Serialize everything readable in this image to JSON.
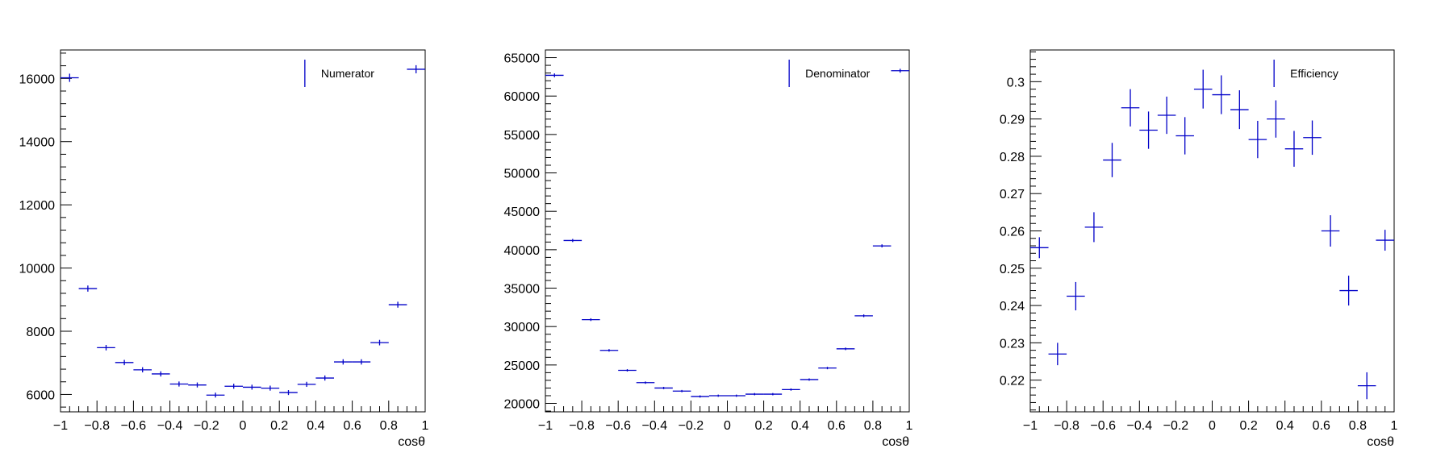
{
  "colors": {
    "marker": "#0000c8",
    "axis": "#000000",
    "background": "#ffffff"
  },
  "chart_data": [
    {
      "type": "scatter",
      "style": "histogram-error-bars",
      "xlabel": "cosθ",
      "ylabel": "",
      "xlim": [
        -1,
        1
      ],
      "ylim": [
        5450,
        16900
      ],
      "grid": false,
      "legend": {
        "position": "top-right",
        "entries": [
          "Numerator"
        ]
      },
      "x_ticks": [
        -1,
        -0.8,
        -0.6,
        -0.4,
        -0.2,
        0,
        0.2,
        0.4,
        0.6,
        0.8,
        1
      ],
      "x_tick_labels": [
        "−1",
        "−0.8",
        "−0.6",
        "−0.4",
        "−0.2",
        "0",
        "0.2",
        "0.4",
        "0.6",
        "0.8",
        "1"
      ],
      "y_ticks": [
        6000,
        8000,
        10000,
        12000,
        14000,
        16000
      ],
      "y_tick_labels": [
        "6000",
        "8000",
        "10000",
        "12000",
        "14000",
        "16000"
      ],
      "bin_half_width": 0.05,
      "series": [
        {
          "name": "Numerator",
          "x": [
            -0.95,
            -0.85,
            -0.75,
            -0.65,
            -0.55,
            -0.45,
            -0.35,
            -0.25,
            -0.15,
            -0.05,
            0.05,
            0.15,
            0.25,
            0.35,
            0.45,
            0.55,
            0.65,
            0.75,
            0.85,
            0.95
          ],
          "y": [
            16020,
            9350,
            7480,
            7010,
            6780,
            6650,
            6330,
            6300,
            5980,
            6260,
            6230,
            6200,
            6060,
            6320,
            6520,
            7030,
            7030,
            7640,
            8840,
            16290
          ],
          "err": [
            130,
            97,
            86,
            84,
            82,
            82,
            80,
            79,
            77,
            79,
            79,
            79,
            78,
            80,
            81,
            84,
            84,
            87,
            94,
            128
          ]
        }
      ]
    },
    {
      "type": "scatter",
      "style": "histogram-error-bars",
      "xlabel": "cosθ",
      "ylabel": "",
      "xlim": [
        -1,
        1
      ],
      "ylim": [
        18900,
        66000
      ],
      "grid": false,
      "legend": {
        "position": "top-right",
        "entries": [
          "Denominator"
        ]
      },
      "x_ticks": [
        -1,
        -0.8,
        -0.6,
        -0.4,
        -0.2,
        0,
        0.2,
        0.4,
        0.6,
        0.8,
        1
      ],
      "x_tick_labels": [
        "−1",
        "−0.8",
        "−0.6",
        "−0.4",
        "−0.2",
        "0",
        "0.2",
        "0.4",
        "0.6",
        "0.8",
        "1"
      ],
      "y_ticks": [
        20000,
        25000,
        30000,
        35000,
        40000,
        45000,
        50000,
        55000,
        60000,
        65000
      ],
      "y_tick_labels": [
        "20000",
        "25000",
        "30000",
        "35000",
        "40000",
        "45000",
        "50000",
        "55000",
        "60000",
        "65000"
      ],
      "bin_half_width": 0.05,
      "series": [
        {
          "name": "Denominator",
          "x": [
            -0.95,
            -0.85,
            -0.75,
            -0.65,
            -0.55,
            -0.45,
            -0.35,
            -0.25,
            -0.15,
            -0.05,
            0.05,
            0.15,
            0.25,
            0.35,
            0.45,
            0.55,
            0.65,
            0.75,
            0.85,
            0.95
          ],
          "y": [
            62700,
            41200,
            30900,
            26900,
            24300,
            22700,
            22000,
            21600,
            20900,
            21000,
            21000,
            21200,
            21200,
            21800,
            23100,
            24600,
            27100,
            31400,
            40500,
            63300
          ],
          "err": [
            250,
            200,
            176,
            164,
            156,
            151,
            148,
            147,
            145,
            145,
            145,
            146,
            146,
            148,
            152,
            157,
            165,
            177,
            201,
            252
          ]
        }
      ]
    },
    {
      "type": "scatter",
      "style": "histogram-error-bars",
      "xlabel": "cosθ",
      "ylabel": "",
      "xlim": [
        -1,
        1
      ],
      "ylim": [
        0.2115,
        0.3085
      ],
      "grid": false,
      "legend": {
        "position": "top-right",
        "entries": [
          "Efficiency"
        ]
      },
      "x_ticks": [
        -1,
        -0.8,
        -0.6,
        -0.4,
        -0.2,
        0,
        0.2,
        0.4,
        0.6,
        0.8,
        1
      ],
      "x_tick_labels": [
        "−1",
        "−0.8",
        "−0.6",
        "−0.4",
        "−0.2",
        "0",
        "0.2",
        "0.4",
        "0.6",
        "0.8",
        "1"
      ],
      "y_ticks": [
        0.22,
        0.23,
        0.24,
        0.25,
        0.26,
        0.27,
        0.28,
        0.29,
        0.3
      ],
      "y_tick_labels": [
        "0.22",
        "0.23",
        "0.24",
        "0.25",
        "0.26",
        "0.27",
        "0.28",
        "0.29",
        "0.3"
      ],
      "bin_half_width": 0.05,
      "series": [
        {
          "name": "Efficiency",
          "x": [
            -0.95,
            -0.85,
            -0.75,
            -0.65,
            -0.55,
            -0.45,
            -0.35,
            -0.25,
            -0.15,
            -0.05,
            0.05,
            0.15,
            0.25,
            0.35,
            0.45,
            0.55,
            0.65,
            0.75,
            0.85,
            0.95
          ],
          "y": [
            0.2555,
            0.227,
            0.2425,
            0.261,
            0.279,
            0.293,
            0.287,
            0.291,
            0.2855,
            0.298,
            0.2965,
            0.2925,
            0.2845,
            0.29,
            0.282,
            0.285,
            0.26,
            0.244,
            0.2185,
            0.2575
          ],
          "err": [
            0.0028,
            0.003,
            0.0038,
            0.004,
            0.0046,
            0.005,
            0.005,
            0.005,
            0.005,
            0.0052,
            0.0052,
            0.0052,
            0.005,
            0.005,
            0.0048,
            0.0046,
            0.0042,
            0.004,
            0.0036,
            0.0028
          ]
        }
      ]
    }
  ]
}
